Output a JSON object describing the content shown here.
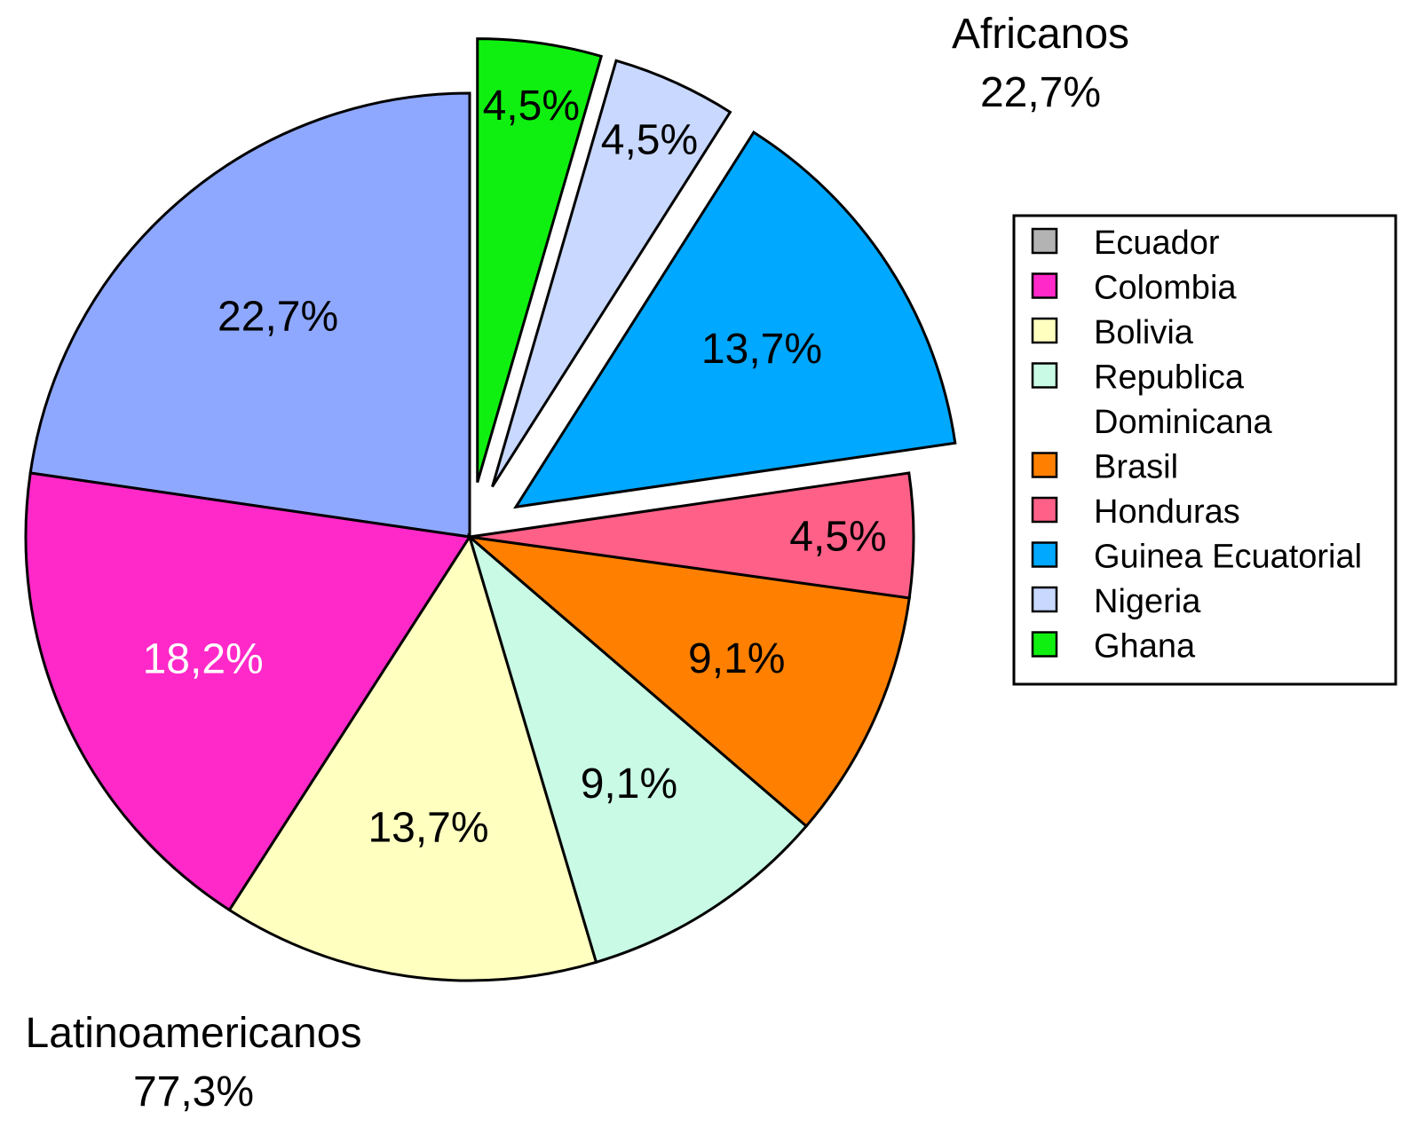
{
  "chart_data": {
    "type": "pie",
    "slices": [
      {
        "name": "Ecuador",
        "value": 22.7,
        "label": "22,7%",
        "color": "#8fa8ff",
        "swatch": "#b3b3b3",
        "label_color": "#000000",
        "group": "latino"
      },
      {
        "name": "Colombia",
        "value": 18.2,
        "label": "18,2%",
        "color": "#ff28c8",
        "swatch": "#ff28c8",
        "label_color": "#ffffff",
        "group": "latino"
      },
      {
        "name": "Bolivia",
        "value": 13.7,
        "label": "13,7%",
        "color": "#ffffc0",
        "swatch": "#ffffc0",
        "label_color": "#000000",
        "group": "latino"
      },
      {
        "name": "Republica Dominicana",
        "legend_lines": [
          "Republica",
          "Dominicana"
        ],
        "value": 9.1,
        "label": "9,1%",
        "color": "#c8fae6",
        "swatch": "#c8fae6",
        "label_color": "#000000",
        "group": "latino"
      },
      {
        "name": "Brasil",
        "value": 9.1,
        "label": "9,1%",
        "color": "#ff8000",
        "swatch": "#ff8000",
        "label_color": "#000000",
        "group": "latino"
      },
      {
        "name": "Honduras",
        "value": 4.5,
        "label": "4,5%",
        "color": "#ff6088",
        "swatch": "#ff6088",
        "label_color": "#000000",
        "group": "latino"
      },
      {
        "name": "Guinea Ecuatorial",
        "value": 13.7,
        "label": "13,7%",
        "color": "#00a8ff",
        "swatch": "#00a8ff",
        "label_color": "#000000",
        "group": "africano"
      },
      {
        "name": "Nigeria",
        "value": 4.5,
        "label": "4,5%",
        "color": "#c8d8ff",
        "swatch": "#c8d8ff",
        "label_color": "#000000",
        "group": "africano"
      },
      {
        "name": "Ghana",
        "value": 4.5,
        "label": "4,5%",
        "color": "#10f010",
        "swatch": "#10f010",
        "label_color": "#000000",
        "group": "africano"
      }
    ],
    "groups": [
      {
        "id": "africano",
        "name": "Africanos",
        "value_label": "22,7%",
        "exploded": true
      },
      {
        "id": "latino",
        "name": "Latinoamericanos",
        "value_label": "77,3%",
        "exploded": false
      }
    ],
    "legend_position": "right"
  }
}
